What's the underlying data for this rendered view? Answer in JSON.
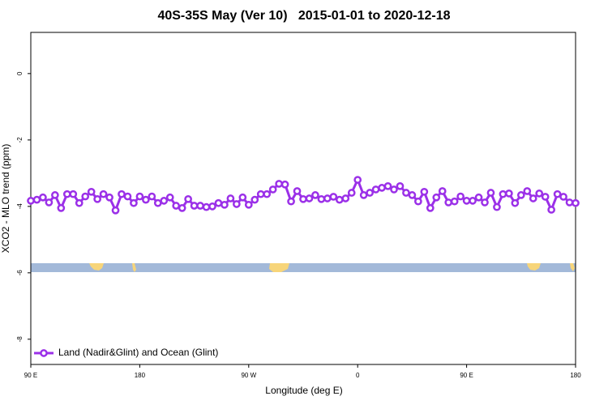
{
  "chart_data": {
    "type": "line",
    "title": "40S-35S May (Ver 10)   2015-01-01 to 2020-12-18",
    "xlabel": "Longitude (deg E)",
    "ylabel": "XCO2 - MLO trend (ppm)",
    "xlim": [
      90,
      540
    ],
    "ylim": [
      -8.76,
      1.24
    ],
    "xticks": [
      {
        "value": 90,
        "label": "90 E"
      },
      180,
      {
        "value": 270,
        "label": "90 W"
      },
      {
        "value": 360,
        "label": "0"
      },
      {
        "value": 450,
        "label": "90 E"
      },
      {
        "value": 540,
        "label": "180"
      }
    ],
    "yticks": [
      0,
      -2,
      -4,
      -6,
      -8
    ],
    "legend": "bottom-left",
    "x": [
      90,
      95,
      100,
      105,
      110,
      115,
      120,
      125,
      130,
      135,
      140,
      145,
      150,
      155,
      160,
      165,
      170,
      175,
      180,
      185,
      190,
      195,
      200,
      205,
      210,
      215,
      220,
      225,
      230,
      235,
      240,
      245,
      250,
      255,
      260,
      265,
      270,
      275,
      280,
      285,
      290,
      295,
      300,
      305,
      310,
      315,
      320,
      325,
      330,
      335,
      340,
      345,
      350,
      355,
      360,
      365,
      370,
      375,
      380,
      385,
      390,
      395,
      400,
      405,
      410,
      415,
      420,
      425,
      430,
      435,
      440,
      445,
      450,
      455,
      460,
      465,
      470,
      475,
      480,
      485,
      490,
      495,
      500,
      505,
      510,
      515,
      520,
      525,
      530,
      535,
      540
    ],
    "series": [
      {
        "name": "Land (Nadir&Glint) and Ocean (Glint)",
        "color": "#9b30e8",
        "values": [
          -3.83,
          -3.8,
          -3.73,
          -3.88,
          -3.66,
          -4.05,
          -3.63,
          -3.63,
          -3.9,
          -3.7,
          -3.56,
          -3.78,
          -3.63,
          -3.73,
          -4.12,
          -3.63,
          -3.7,
          -3.9,
          -3.7,
          -3.8,
          -3.7,
          -3.9,
          -3.83,
          -3.73,
          -3.98,
          -4.05,
          -3.78,
          -3.98,
          -3.98,
          -4.02,
          -4.0,
          -3.9,
          -3.95,
          -3.76,
          -3.93,
          -3.73,
          -3.95,
          -3.8,
          -3.63,
          -3.63,
          -3.49,
          -3.32,
          -3.34,
          -3.85,
          -3.54,
          -3.78,
          -3.76,
          -3.66,
          -3.78,
          -3.76,
          -3.71,
          -3.8,
          -3.76,
          -3.59,
          -3.2,
          -3.66,
          -3.59,
          -3.49,
          -3.44,
          -3.39,
          -3.49,
          -3.39,
          -3.59,
          -3.66,
          -3.85,
          -3.56,
          -4.05,
          -3.73,
          -3.54,
          -3.88,
          -3.85,
          -3.7,
          -3.83,
          -3.83,
          -3.73,
          -3.88,
          -3.59,
          -4.02,
          -3.63,
          -3.61,
          -3.9,
          -3.66,
          -3.54,
          -3.76,
          -3.61,
          -3.71,
          -4.1,
          -3.63,
          -3.71,
          -3.88,
          -3.9
        ]
      }
    ]
  }
}
